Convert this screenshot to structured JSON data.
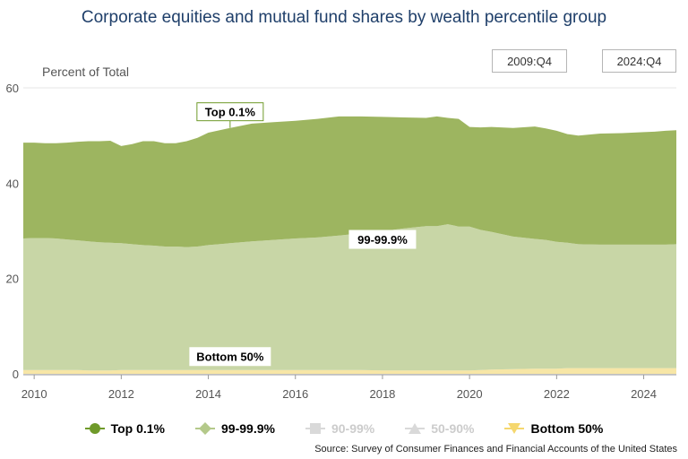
{
  "title": "Corporate equities and mutual fund shares by wealth percentile group",
  "range": {
    "start": "2009:Q4",
    "end": "2024:Q4"
  },
  "source": "Source: Survey of Consumer Finances and Financial Accounts of the United States",
  "colors": {
    "top01": "#9db560",
    "top01_marker": "#6f9a2a",
    "p99": "#c8d6a6",
    "p99_marker": "#b4c98a",
    "p90": "#d9d9d9",
    "p50": "#d9d9d9",
    "bottom50": "#f7e6a6",
    "bottom50_marker": "#f5d76e"
  },
  "legend": [
    {
      "label": "Top 0.1%",
      "icon": "circle-icon",
      "active": true
    },
    {
      "label": "99-99.9%",
      "icon": "diamond-icon",
      "active": true
    },
    {
      "label": "90-99%",
      "icon": "square-icon",
      "active": false
    },
    {
      "label": "50-90%",
      "icon": "triangle-icon",
      "active": false
    },
    {
      "label": "Bottom 50%",
      "icon": "triangle-down-icon",
      "active": true
    }
  ],
  "chart_data": {
    "type": "area",
    "stacked": true,
    "ylabel": "Percent of Total",
    "ylim": [
      0,
      60
    ],
    "yticks": [
      0,
      20,
      40,
      60
    ],
    "xlim": [
      2009.75,
      2024.75
    ],
    "xticks": [
      2010,
      2012,
      2014,
      2016,
      2018,
      2020,
      2022,
      2024
    ],
    "x": [
      2009.75,
      2010.0,
      2010.25,
      2010.5,
      2010.75,
      2011.0,
      2011.25,
      2011.5,
      2011.75,
      2012.0,
      2012.25,
      2012.5,
      2012.75,
      2013.0,
      2013.25,
      2013.5,
      2013.75,
      2014.0,
      2014.5,
      2015.0,
      2015.5,
      2016.0,
      2016.5,
      2017.0,
      2017.5,
      2018.0,
      2018.5,
      2019.0,
      2019.25,
      2019.5,
      2019.75,
      2020.0,
      2020.25,
      2020.5,
      2021.0,
      2021.5,
      2021.75,
      2022.0,
      2022.25,
      2022.5,
      2023.0,
      2023.5,
      2024.0,
      2024.25,
      2024.5,
      2024.75
    ],
    "series": [
      {
        "name": "Bottom 50%",
        "values": [
          0.8,
          0.8,
          0.8,
          0.8,
          0.8,
          0.8,
          0.7,
          0.7,
          0.7,
          0.8,
          0.8,
          0.8,
          0.8,
          0.8,
          0.8,
          0.8,
          0.8,
          0.8,
          0.8,
          0.8,
          0.8,
          0.8,
          0.8,
          0.8,
          0.8,
          0.7,
          0.7,
          0.7,
          0.7,
          0.7,
          0.7,
          0.7,
          0.8,
          0.9,
          1.0,
          1.1,
          1.1,
          1.1,
          1.2,
          1.2,
          1.2,
          1.2,
          1.2,
          1.2,
          1.2,
          1.2
        ]
      },
      {
        "name": "99-99.9%",
        "values": [
          27.6,
          27.7,
          27.7,
          27.6,
          27.4,
          27.2,
          27.1,
          26.9,
          26.8,
          26.6,
          26.4,
          26.2,
          26.1,
          25.9,
          25.9,
          25.8,
          25.9,
          26.2,
          26.6,
          27.0,
          27.3,
          27.6,
          27.8,
          28.2,
          28.7,
          29.2,
          29.8,
          30.3,
          30.3,
          30.7,
          30.2,
          30.2,
          29.4,
          28.9,
          27.8,
          27.2,
          27.0,
          26.6,
          26.3,
          26.0,
          25.9,
          25.9,
          25.9,
          25.9,
          25.9,
          26.0
        ]
      },
      {
        "name": "Top 0.1%",
        "values": [
          20.1,
          20.0,
          19.9,
          20.0,
          20.3,
          20.7,
          21.0,
          21.2,
          21.4,
          20.4,
          21.0,
          21.8,
          21.9,
          21.7,
          21.7,
          22.2,
          22.8,
          23.6,
          24.2,
          24.7,
          24.7,
          24.7,
          24.9,
          25.0,
          24.5,
          24.0,
          23.3,
          22.7,
          23.0,
          22.3,
          22.6,
          20.9,
          21.5,
          22.0,
          22.8,
          23.6,
          23.4,
          23.3,
          22.8,
          22.8,
          23.3,
          23.4,
          23.6,
          23.7,
          23.9,
          23.9
        ]
      }
    ],
    "hidden_series": [
      "90-99%",
      "50-90%"
    ],
    "annotations": [
      {
        "text": "Top 0.1%",
        "x": 2014.5,
        "series": "Top 0.1%",
        "style": "boxed-green"
      },
      {
        "text": "99-99.9%",
        "x": 2018.0,
        "series": "99-99.9%",
        "style": "boxed-plain"
      },
      {
        "text": "Bottom 50%",
        "x": 2014.5,
        "series": "Bottom 50%",
        "style": "boxed-plain"
      }
    ]
  }
}
